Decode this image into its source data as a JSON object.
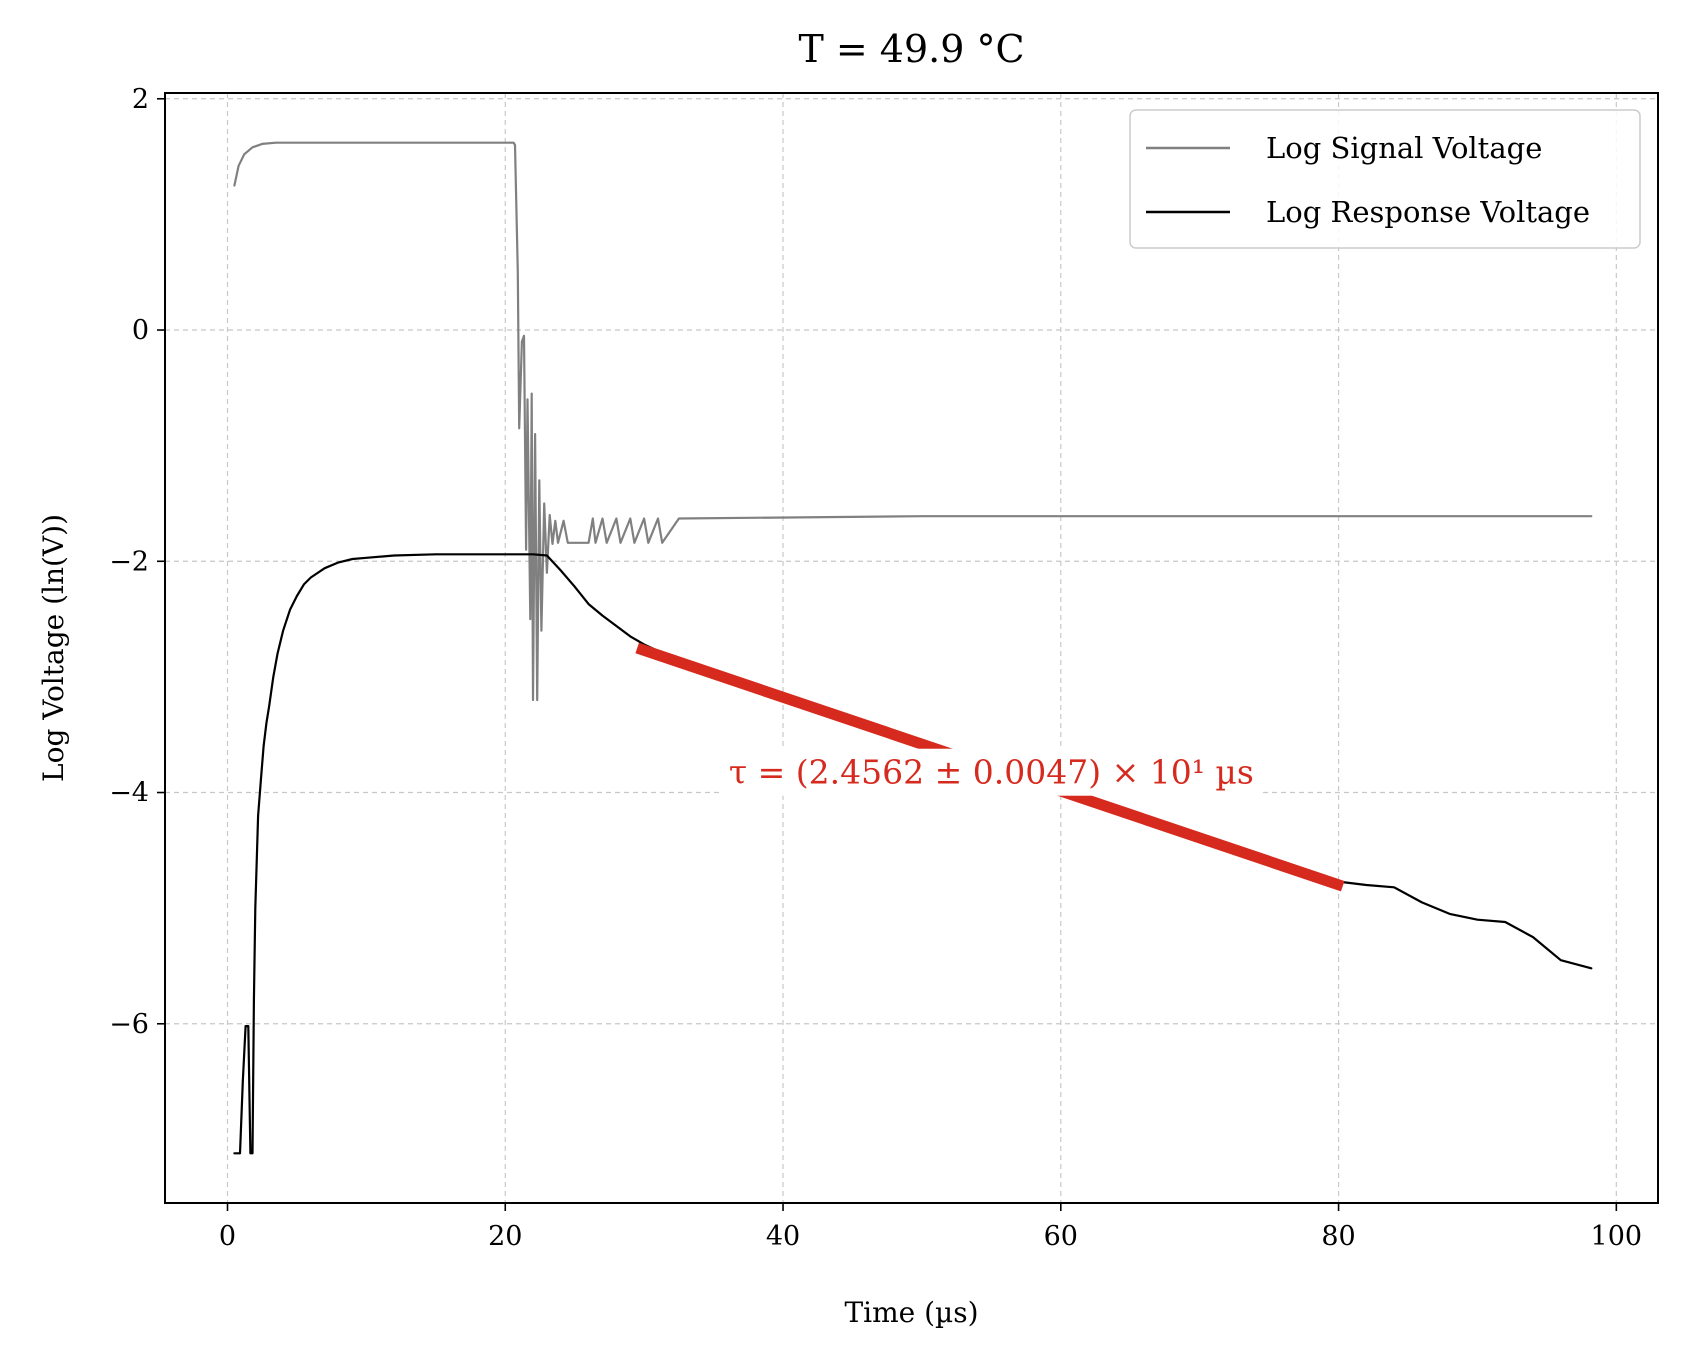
{
  "chart_data": {
    "type": "line",
    "title": "T = 49.9 °C",
    "xlabel": "Time (µs)",
    "ylabel": "Log Voltage (ln(V))",
    "xlim": [
      -4.5,
      103
    ],
    "ylim": [
      -7.55,
      2.05
    ],
    "xticks": [
      0,
      20,
      40,
      60,
      80,
      100
    ],
    "xtick_labels": [
      "0",
      "20",
      "40",
      "60",
      "80",
      "100"
    ],
    "yticks": [
      2,
      0,
      -2,
      -4,
      -6
    ],
    "ytick_labels": [
      "2",
      "0",
      "−2",
      "−4",
      "−6"
    ],
    "grid": true,
    "legend_position": "top-right",
    "colors": {
      "signal": "#808080",
      "response": "#000000",
      "fit": "#d62a1e"
    },
    "series": [
      {
        "name": "Log Signal Voltage",
        "color": "#808080",
        "points": [
          [
            0.5,
            1.25
          ],
          [
            0.8,
            1.42
          ],
          [
            1.2,
            1.52
          ],
          [
            1.8,
            1.58
          ],
          [
            2.5,
            1.61
          ],
          [
            3.5,
            1.62
          ],
          [
            10,
            1.62
          ],
          [
            15,
            1.62
          ],
          [
            20.6,
            1.62
          ],
          [
            20.7,
            1.6
          ],
          [
            20.9,
            0.5
          ],
          [
            21.0,
            -0.85
          ],
          [
            21.2,
            -0.1
          ],
          [
            21.35,
            -0.05
          ],
          [
            21.5,
            -1.9
          ],
          [
            21.6,
            -0.6
          ],
          [
            21.8,
            -2.5
          ],
          [
            21.9,
            -0.55
          ],
          [
            22.0,
            -3.2
          ],
          [
            22.15,
            -0.9
          ],
          [
            22.3,
            -3.2
          ],
          [
            22.45,
            -1.3
          ],
          [
            22.6,
            -2.6
          ],
          [
            22.8,
            -1.5
          ],
          [
            23.0,
            -2.1
          ],
          [
            23.2,
            -1.6
          ],
          [
            23.4,
            -1.85
          ],
          [
            23.6,
            -1.65
          ],
          [
            23.8,
            -1.84
          ],
          [
            24.2,
            -1.65
          ],
          [
            24.5,
            -1.84
          ],
          [
            25,
            -1.84
          ],
          [
            26,
            -1.84
          ],
          [
            26.3,
            -1.63
          ],
          [
            26.5,
            -1.84
          ],
          [
            27,
            -1.63
          ],
          [
            27.3,
            -1.84
          ],
          [
            28,
            -1.63
          ],
          [
            28.3,
            -1.84
          ],
          [
            29,
            -1.63
          ],
          [
            29.3,
            -1.84
          ],
          [
            30,
            -1.63
          ],
          [
            30.3,
            -1.84
          ],
          [
            31,
            -1.63
          ],
          [
            31.3,
            -1.84
          ],
          [
            32.5,
            -1.63
          ],
          [
            50,
            -1.61
          ],
          [
            75,
            -1.61
          ],
          [
            98.2,
            -1.61
          ]
        ]
      },
      {
        "name": "Log Response Voltage",
        "color": "#000000",
        "points": [
          [
            0.5,
            -7.12
          ],
          [
            0.9,
            -7.12
          ],
          [
            1.1,
            -6.5
          ],
          [
            1.3,
            -6.02
          ],
          [
            1.5,
            -6.02
          ],
          [
            1.65,
            -7.12
          ],
          [
            1.8,
            -7.12
          ],
          [
            1.9,
            -5.8
          ],
          [
            2.0,
            -5.0
          ],
          [
            2.2,
            -4.2
          ],
          [
            2.4,
            -3.9
          ],
          [
            2.6,
            -3.6
          ],
          [
            2.8,
            -3.4
          ],
          [
            3.0,
            -3.25
          ],
          [
            3.3,
            -3.0
          ],
          [
            3.6,
            -2.8
          ],
          [
            4.0,
            -2.6
          ],
          [
            4.5,
            -2.42
          ],
          [
            5,
            -2.3
          ],
          [
            5.5,
            -2.2
          ],
          [
            6,
            -2.14
          ],
          [
            7,
            -2.06
          ],
          [
            8,
            -2.01
          ],
          [
            9,
            -1.98
          ],
          [
            10,
            -1.97
          ],
          [
            12,
            -1.95
          ],
          [
            15,
            -1.94
          ],
          [
            18,
            -1.94
          ],
          [
            20,
            -1.94
          ],
          [
            22,
            -1.94
          ],
          [
            23,
            -1.95
          ],
          [
            24,
            -2.08
          ],
          [
            25,
            -2.22
          ],
          [
            26,
            -2.37
          ],
          [
            27,
            -2.47
          ],
          [
            28,
            -2.56
          ],
          [
            29,
            -2.65
          ],
          [
            30,
            -2.72
          ],
          [
            32,
            -2.83
          ],
          [
            34,
            -2.93
          ],
          [
            36,
            -3.02
          ],
          [
            38,
            -3.1
          ],
          [
            40,
            -3.18
          ],
          [
            42,
            -3.26
          ],
          [
            44,
            -3.34
          ],
          [
            46,
            -3.42
          ],
          [
            48,
            -3.49
          ],
          [
            50,
            -3.56
          ],
          [
            52,
            -3.64
          ],
          [
            54,
            -3.72
          ],
          [
            56,
            -3.8
          ],
          [
            58,
            -3.88
          ],
          [
            60,
            -3.97
          ],
          [
            62,
            -4.05
          ],
          [
            64,
            -4.14
          ],
          [
            66,
            -4.21
          ],
          [
            68,
            -4.3
          ],
          [
            70,
            -4.38
          ],
          [
            72,
            -4.45
          ],
          [
            74,
            -4.53
          ],
          [
            76,
            -4.61
          ],
          [
            78,
            -4.69
          ],
          [
            80,
            -4.77
          ],
          [
            82,
            -4.8
          ],
          [
            84,
            -4.82
          ],
          [
            86,
            -4.95
          ],
          [
            88,
            -5.05
          ],
          [
            90,
            -5.1
          ],
          [
            92,
            -5.12
          ],
          [
            94,
            -5.25
          ],
          [
            96,
            -5.45
          ],
          [
            98.2,
            -5.52
          ]
        ]
      },
      {
        "name": "",
        "color": "#d62a1e",
        "role": "fit",
        "points": [
          [
            29.5,
            -2.75
          ],
          [
            80.3,
            -4.81
          ]
        ]
      }
    ],
    "annotations": [
      {
        "text": "τ = (2.4562 ± 0.0047) × 10¹ µs",
        "x": 55,
        "y": -3.82,
        "color": "#d62a1e"
      }
    ]
  }
}
